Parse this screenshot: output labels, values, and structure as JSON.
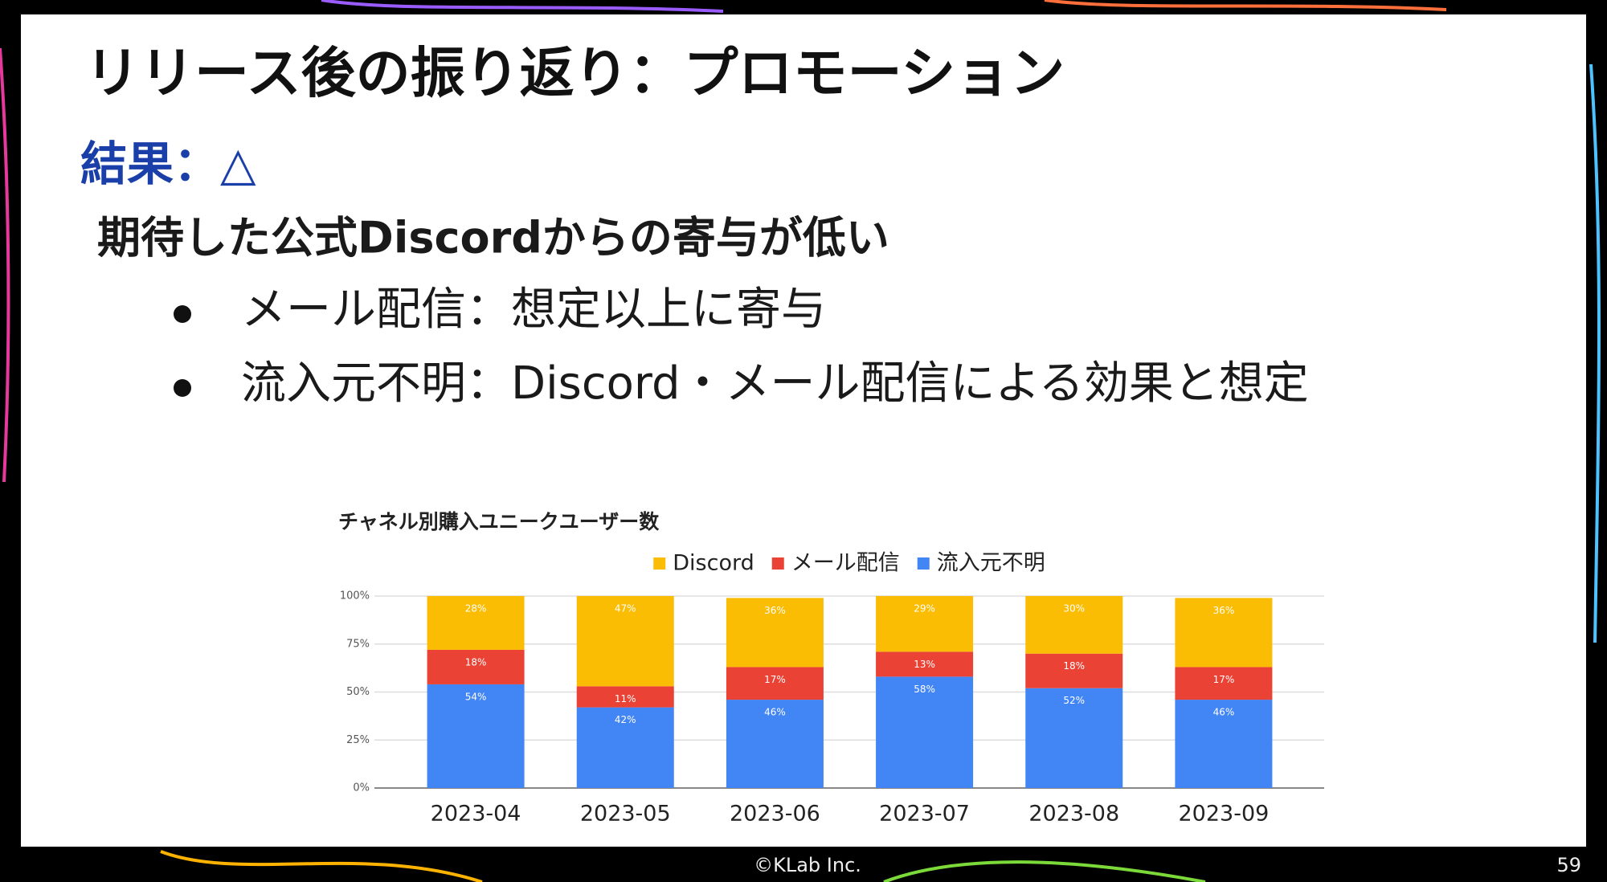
{
  "title": "リリース後の振り返り：プロモーション",
  "result": "結果：△",
  "summary": "期待した公式Discordからの寄与が低い",
  "bullets": [
    "メール配信：想定以上に寄与",
    "流入元不明：Discord・メール配信による効果と想定"
  ],
  "chart_data": {
    "type": "bar",
    "stacked": true,
    "title": "チャネル別購入ユニークユーザー数",
    "categories": [
      "2023-04",
      "2023-05",
      "2023-06",
      "2023-07",
      "2023-08",
      "2023-09"
    ],
    "series": [
      {
        "name": "Discord",
        "color": "#fbbc04",
        "values": [
          28,
          47,
          36,
          29,
          30,
          36
        ],
        "value_labels": [
          "28%",
          "47%",
          "36%",
          "29%",
          "30%",
          "36%"
        ]
      },
      {
        "name": "メール配信",
        "color": "#ea4335",
        "values": [
          18,
          11,
          17,
          13,
          18,
          17
        ],
        "value_labels": [
          "18%",
          "11%",
          "17%",
          "13%",
          "18%",
          "17%"
        ]
      },
      {
        "name": "流入元不明",
        "color": "#4285f4",
        "values": [
          54,
          42,
          46,
          58,
          52,
          46
        ],
        "value_labels": [
          "54%",
          "42%",
          "46%",
          "58%",
          "52%",
          "46%"
        ]
      }
    ],
    "ylim": [
      0,
      100
    ],
    "yticks": [
      {
        "value": 0,
        "label": "0%"
      },
      {
        "value": 25,
        "label": "25%"
      },
      {
        "value": 50,
        "label": "50%"
      },
      {
        "value": 75,
        "label": "75%"
      },
      {
        "value": 100,
        "label": "100%"
      }
    ],
    "grid": true,
    "legend": "top"
  },
  "footer": {
    "copyright": "©KLab Inc.",
    "page": "59"
  }
}
